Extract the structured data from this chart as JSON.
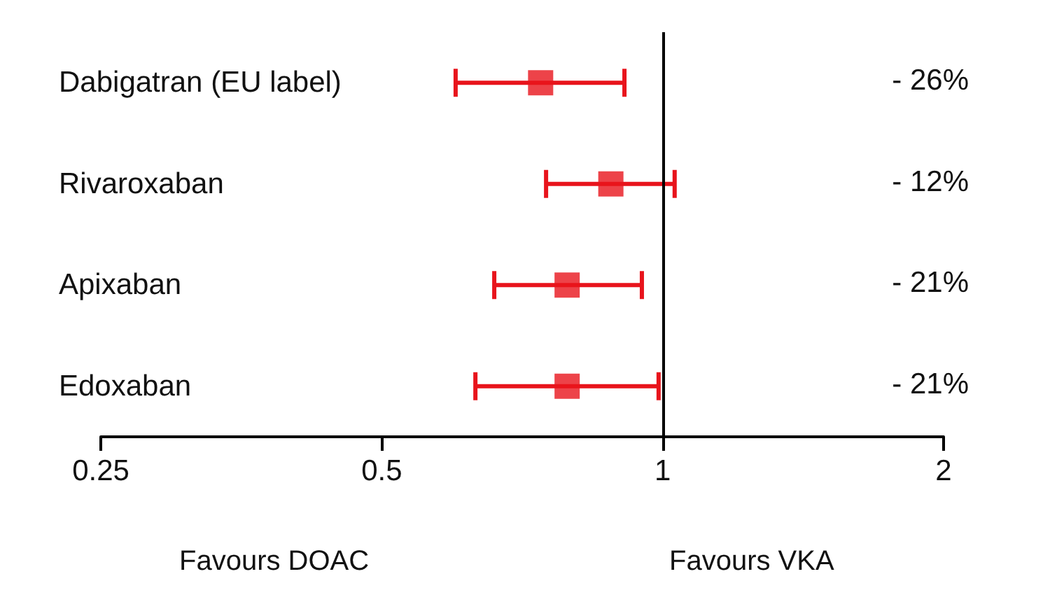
{
  "chart_data": {
    "type": "scatter",
    "orientation": "horizontal",
    "categories": [
      "Dabigatran (EU label)",
      "Rivaroxaban",
      "Apixaban",
      "Edoxaban"
    ],
    "values": [
      0.74,
      0.88,
      0.79,
      0.79
    ],
    "errors": [
      [
        0.6,
        0.91
      ],
      [
        0.75,
        1.03
      ],
      [
        0.66,
        0.95
      ],
      [
        0.63,
        0.99
      ]
    ],
    "color": "#e8141c",
    "marker": "square",
    "log": "x",
    "grid": false,
    "xlim": [
      0.25,
      2
    ],
    "xticks": [
      0.25,
      0.5,
      1,
      2
    ],
    "ref_lines": [
      {
        "axis": "x",
        "value": 1,
        "label": null,
        "color": "#000000"
      }
    ],
    "annotations": [
      "Favours DOAC",
      "Favours VKA",
      "- 26%",
      "- 12%",
      "- 21%",
      "- 21%"
    ]
  }
}
